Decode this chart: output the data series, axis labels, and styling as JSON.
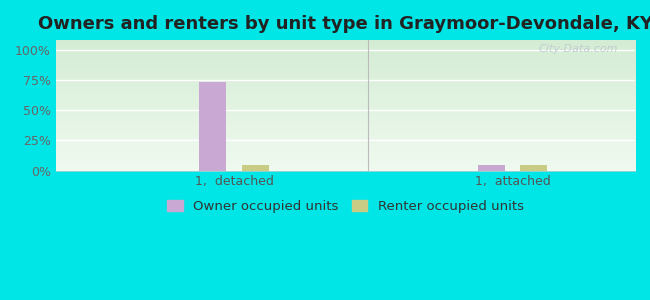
{
  "title": "Owners and renters by unit type in Graymoor-Devondale, KY",
  "categories": [
    "1,  detached",
    "1,  attached"
  ],
  "owner_values": [
    73,
    5
  ],
  "renter_values": [
    5,
    5
  ],
  "owner_color": "#c9a8d4",
  "renter_color": "#c8cc84",
  "background_color": "#00e5e5",
  "yticks": [
    0,
    25,
    50,
    75,
    100
  ],
  "ylim": [
    0,
    108
  ],
  "bar_width": 0.12,
  "legend_labels": [
    "Owner occupied units",
    "Renter occupied units"
  ],
  "watermark": "City-Data.com",
  "title_fontsize": 13,
  "tick_fontsize": 9,
  "legend_fontsize": 9.5
}
